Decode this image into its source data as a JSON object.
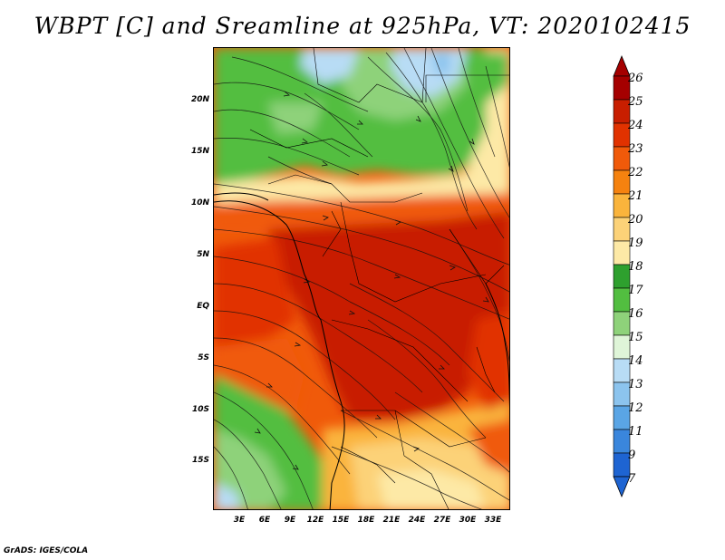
{
  "title": "WBPT [C] and Sreamline at 925hPa, VT: 2020102415",
  "credit": "GrADS: IGES/COLA",
  "map": {
    "lat_labels": [
      "20N",
      "15N",
      "10N",
      "5N",
      "EQ",
      "5S",
      "10S",
      "15S"
    ],
    "lon_labels": [
      "3E",
      "6E",
      "9E",
      "12E",
      "15E",
      "18E",
      "21E",
      "24E",
      "27E",
      "30E",
      "33E"
    ],
    "lon_range": [
      0,
      35
    ],
    "lat_range": [
      -20,
      24.5
    ]
  },
  "colorbar": {
    "labels": [
      "26",
      "25",
      "24",
      "23",
      "22",
      "21",
      "20",
      "19",
      "18",
      "17",
      "16",
      "15",
      "14",
      "13",
      "12",
      "11",
      "9",
      "7"
    ],
    "colors": [
      "#a50000",
      "#c81e00",
      "#e13200",
      "#f05a0a",
      "#f5820f",
      "#fab43c",
      "#fcd278",
      "#fde9a6",
      "#2ea02e",
      "#52be40",
      "#8ed27a",
      "#dff5d8",
      "#b8dcf5",
      "#8cc4ee",
      "#5aa5e5",
      "#3a86dc",
      "#1e64d2"
    ],
    "top_color": "#a50000",
    "bottom_color": "#1e64d2"
  }
}
